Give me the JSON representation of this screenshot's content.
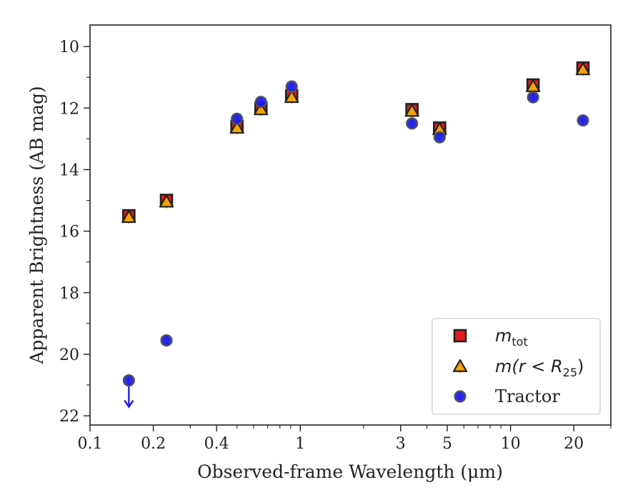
{
  "chart_data": {
    "type": "scatter",
    "xlabel": "Observed-frame Wavelength (μm)",
    "ylabel": "Apparent Brightness (AB mag)",
    "x_scale": "log",
    "xlim": [
      0.1,
      30
    ],
    "ylim": [
      22.3,
      9.3
    ],
    "y_inverted": true,
    "grid": false,
    "legend_position": "lower-right",
    "x_ticks": [
      {
        "value": 0.1,
        "label": "0.1"
      },
      {
        "value": 0.2,
        "label": "0.2"
      },
      {
        "value": 0.4,
        "label": "0.4"
      },
      {
        "value": 1,
        "label": "1"
      },
      {
        "value": 3,
        "label": "3"
      },
      {
        "value": 5,
        "label": "5"
      },
      {
        "value": 10,
        "label": "10"
      },
      {
        "value": 20,
        "label": "20"
      }
    ],
    "x_minor_ticks": [
      0.3,
      0.5,
      0.6,
      0.7,
      0.8,
      0.9,
      2,
      4,
      6,
      7,
      8,
      9,
      30
    ],
    "y_ticks": [
      {
        "value": 10,
        "label": "10"
      },
      {
        "value": 12,
        "label": "12"
      },
      {
        "value": 14,
        "label": "14"
      },
      {
        "value": 16,
        "label": "16"
      },
      {
        "value": 18,
        "label": "18"
      },
      {
        "value": 20,
        "label": "20"
      },
      {
        "value": 22,
        "label": "22"
      }
    ],
    "y_minor_ticks": [
      11,
      13,
      15,
      17,
      19,
      21
    ],
    "series": [
      {
        "name": "m_tot",
        "legend_label": "m",
        "legend_subscript": "tot",
        "marker": "square",
        "color": "#e31a1c",
        "edge_color": "#222222",
        "x": [
          0.153,
          0.231,
          0.5,
          0.65,
          0.91,
          3.4,
          4.6,
          12.8,
          22.1
        ],
        "y": [
          15.5,
          15.0,
          12.6,
          12.0,
          11.6,
          12.05,
          12.65,
          11.25,
          10.7
        ]
      },
      {
        "name": "m(r<R25)",
        "legend_label": "m(r < R",
        "legend_subscript": "25",
        "legend_suffix": ")",
        "marker": "triangle",
        "color": "#f5a300",
        "edge_color": "#222222",
        "x": [
          0.153,
          0.231,
          0.5,
          0.65,
          0.91,
          3.4,
          4.6,
          12.8,
          22.1
        ],
        "y": [
          15.55,
          15.05,
          12.65,
          12.05,
          11.65,
          12.1,
          12.7,
          11.3,
          10.75
        ]
      },
      {
        "name": "Tractor",
        "legend_label": "Tractor",
        "marker": "circle",
        "color": "#1f1fe6",
        "edge_color": "#555555",
        "x": [
          0.153,
          0.231,
          0.5,
          0.65,
          0.91,
          3.4,
          4.6,
          12.8,
          22.1
        ],
        "y": [
          20.85,
          19.55,
          12.35,
          11.8,
          11.3,
          12.5,
          12.95,
          11.65,
          12.4
        ],
        "upper_limit_index": 0
      }
    ]
  }
}
